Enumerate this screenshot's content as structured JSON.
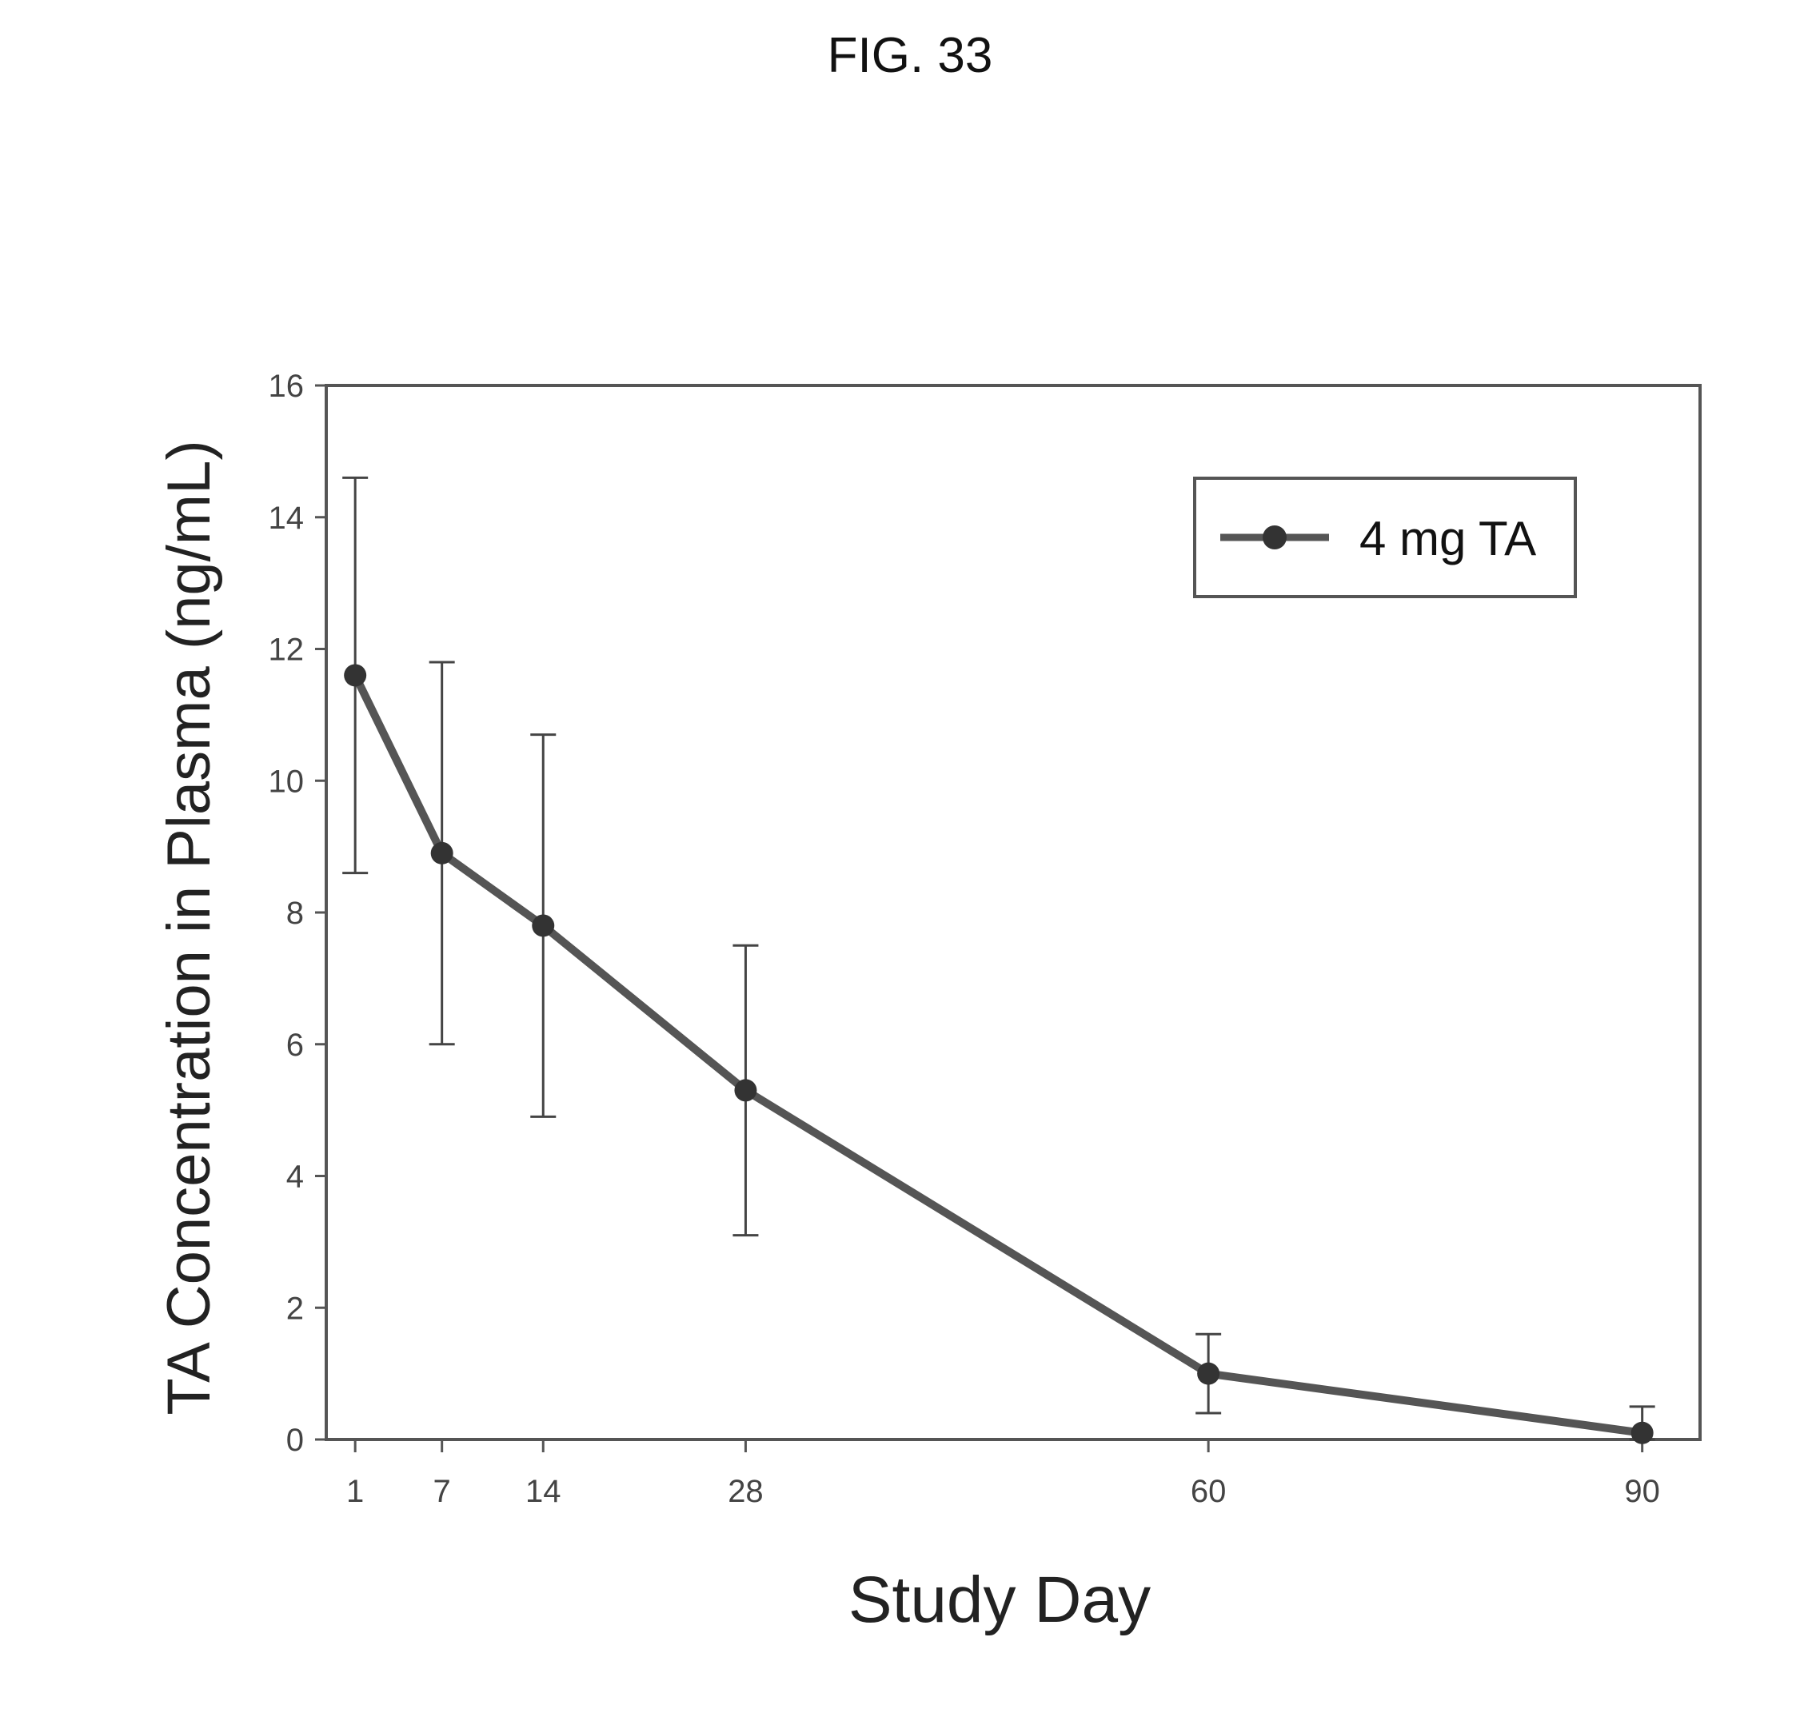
{
  "figure": {
    "title": "FIG. 33"
  },
  "chart_data": {
    "type": "line",
    "title": "",
    "xlabel": "Study Day",
    "ylabel": "TA Concentration in Plasma (ng/mL)",
    "x": [
      1,
      7,
      14,
      28,
      60,
      90
    ],
    "x_tick_labels": [
      "1",
      "7",
      "14",
      "28",
      "60",
      "90"
    ],
    "y_ticks": [
      0,
      2,
      4,
      6,
      8,
      10,
      12,
      14,
      16
    ],
    "ylim": [
      0,
      16
    ],
    "grid": false,
    "legend_position": "top-right",
    "series": [
      {
        "name": "4 mg TA",
        "values": [
          11.6,
          8.9,
          7.8,
          5.3,
          1.0,
          0.1
        ],
        "error_low": [
          8.6,
          6.0,
          4.9,
          3.1,
          0.4,
          0.0
        ],
        "error_high": [
          14.6,
          11.8,
          10.7,
          7.5,
          1.6,
          0.5
        ]
      }
    ],
    "colors": {
      "line": "#555555",
      "marker": "#333333",
      "axis": "#555555"
    }
  }
}
